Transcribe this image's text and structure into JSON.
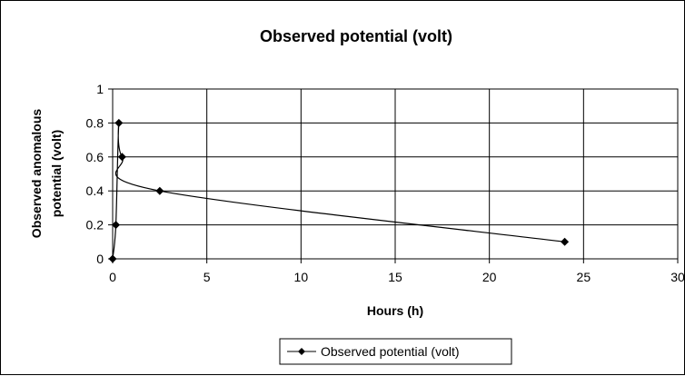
{
  "chart_data": {
    "type": "scatter",
    "title": "Observed potential (volt)",
    "xlabel": "Hours (h)",
    "ylabel_lines": [
      "Observed anomalous",
      "potential (volt)"
    ],
    "xlim": [
      0,
      30
    ],
    "ylim": [
      0,
      1
    ],
    "xticks": [
      0,
      5,
      10,
      15,
      20,
      25,
      30
    ],
    "yticks": [
      0,
      0.2,
      0.4,
      0.6,
      0.8,
      1
    ],
    "xtick_labels": [
      "0",
      "5",
      "10",
      "15",
      "20",
      "25",
      "30"
    ],
    "ytick_labels": [
      "0",
      "0.2",
      "0.4",
      "0.6",
      "0.8",
      "1"
    ],
    "grid": true,
    "legend_position": "bottom-center",
    "series": [
      {
        "name": "Observed potential (volt)",
        "color": "#000000",
        "marker": "diamond",
        "smooth": true,
        "x": [
          0,
          0.17,
          0.33,
          0.5,
          2.5,
          24
        ],
        "y": [
          0,
          0.2,
          0.8,
          0.6,
          0.4,
          0.1
        ]
      }
    ]
  }
}
